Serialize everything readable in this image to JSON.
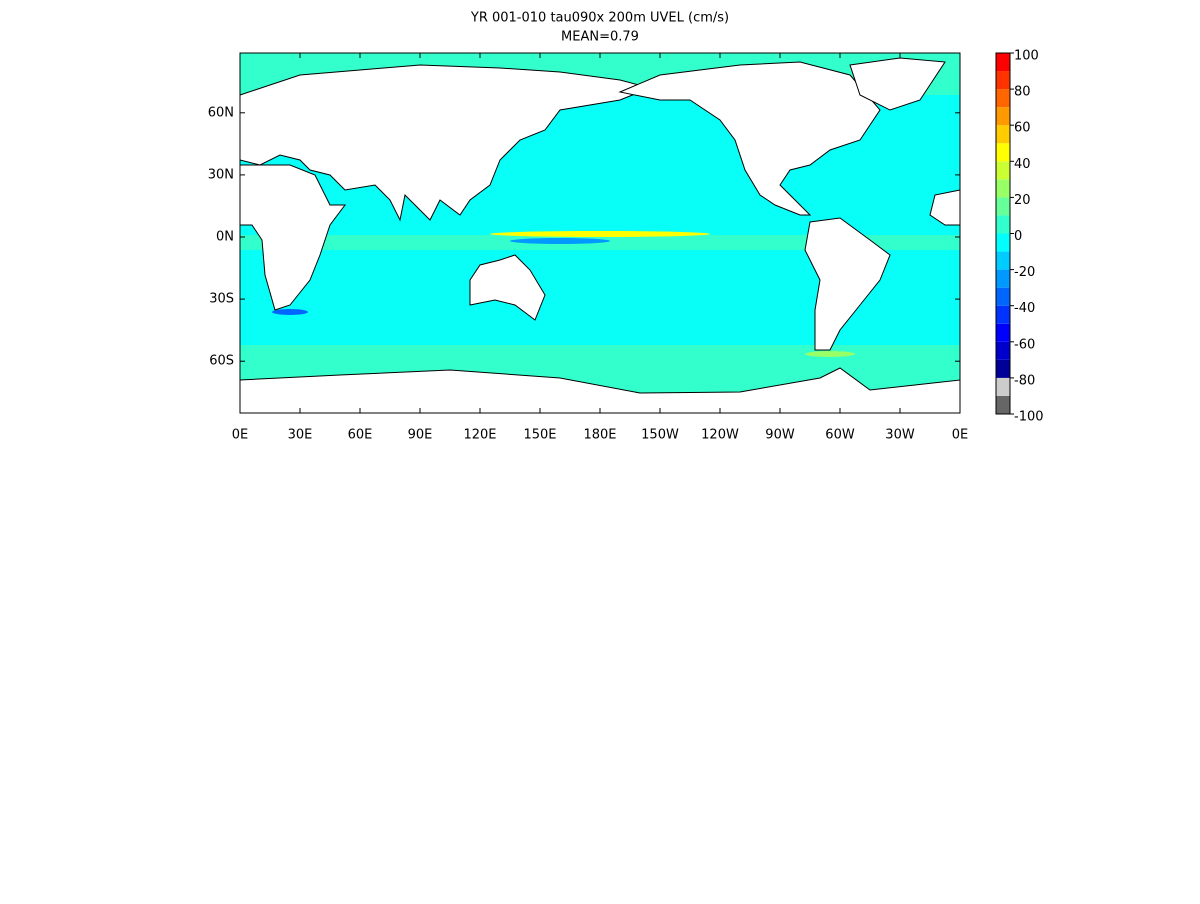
{
  "title": "YR 001-010 tau090x 200m UVEL (cm/s)",
  "subtitle": "MEAN=0.79",
  "map": {
    "lon_ticks": [
      {
        "value": 0,
        "label": "0E"
      },
      {
        "value": 30,
        "label": "30E"
      },
      {
        "value": 60,
        "label": "60E"
      },
      {
        "value": 90,
        "label": "90E"
      },
      {
        "value": 120,
        "label": "120E"
      },
      {
        "value": 150,
        "label": "150E"
      },
      {
        "value": 180,
        "label": "180E"
      },
      {
        "value": 210,
        "label": "150W"
      },
      {
        "value": 240,
        "label": "120W"
      },
      {
        "value": 270,
        "label": "90W"
      },
      {
        "value": 300,
        "label": "60W"
      },
      {
        "value": 330,
        "label": "30W"
      },
      {
        "value": 360,
        "label": "0E"
      }
    ],
    "lat_ticks": [
      {
        "value": 60,
        "label": "60N"
      },
      {
        "value": 30,
        "label": "30N"
      },
      {
        "value": 0,
        "label": "0N"
      },
      {
        "value": -30,
        "label": "30S"
      },
      {
        "value": -60,
        "label": "60S"
      }
    ]
  },
  "colorbar": {
    "levels": [
      -100,
      -90,
      -80,
      -70,
      -60,
      -50,
      -40,
      -30,
      -20,
      -10,
      0,
      10,
      20,
      30,
      40,
      50,
      60,
      70,
      80,
      90,
      100
    ],
    "colors": [
      "#666666",
      "#cccccc",
      "#000099",
      "#0000cc",
      "#0000ff",
      "#0033ff",
      "#0066ff",
      "#0099ff",
      "#00ccff",
      "#00ffff",
      "#33ffcc",
      "#66ff99",
      "#99ff66",
      "#ccff33",
      "#ffff00",
      "#ffcc00",
      "#ff9900",
      "#ff6600",
      "#ff3300",
      "#ff0000"
    ],
    "tick_labels": [
      100,
      80,
      60,
      40,
      20,
      0,
      -20,
      -40,
      -60,
      -80,
      -100
    ]
  }
}
